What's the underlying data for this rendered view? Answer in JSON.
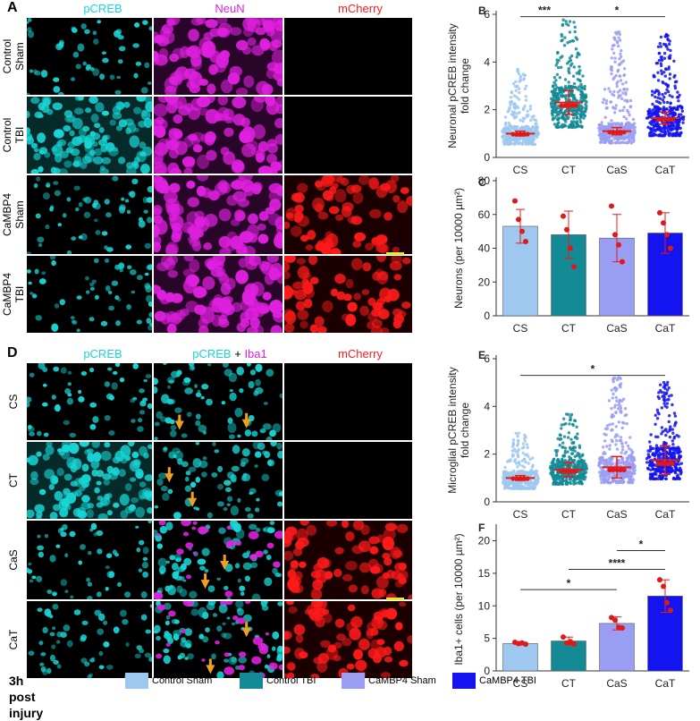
{
  "panelA": {
    "letter": "A",
    "col_headers": [
      "pCREB",
      "NeuN",
      "mCherry"
    ],
    "row_labels": [
      "Control\nSham",
      "Control\nTBI",
      "CaMBP4\nSham",
      "CaMBP4\nTBI"
    ]
  },
  "panelD": {
    "letter": "D",
    "col_head_1": "pCREB",
    "col_head_2a": "pCREB",
    "col_head_2b": " + ",
    "col_head_2c": "Iba1",
    "col_head_3": "mCherry",
    "row_labels": [
      "CS",
      "CT",
      "CaS",
      "CaT"
    ]
  },
  "colors": {
    "cyan": "#18d6d6",
    "magenta": "#e020e0",
    "red": "#ff1a1a",
    "control_sham": "#9ec8ef",
    "control_tbi": "#138a95",
    "cambp4_sham": "#9a9ef2",
    "cambp4_tbi": "#1414f0",
    "mean_bar": "#e81b1b",
    "arrow": "#f0a020"
  },
  "legend": {
    "title": "3h post injury",
    "items": [
      {
        "label": "Control Sham",
        "color": "#9ec8ef"
      },
      {
        "label": "Control TBI",
        "color": "#138a95"
      },
      {
        "label": "CaMBP4 Sham",
        "color": "#9a9ef2"
      },
      {
        "label": "CaMBP4 TBI",
        "color": "#1414f0"
      }
    ]
  },
  "chart_data": [
    {
      "letter": "B",
      "type": "scatter",
      "ylabel": "Neuronal pCREB intensity\nfold change",
      "categories": [
        "CS",
        "CT",
        "CaS",
        "CaT"
      ],
      "ylim": [
        0,
        6
      ],
      "yticks": [
        0,
        2,
        4,
        6
      ],
      "means": [
        1.0,
        2.3,
        1.1,
        1.65
      ],
      "sd": [
        0.1,
        0.5,
        0.15,
        0.25
      ],
      "spread_max": [
        3.7,
        5.9,
        5.3,
        5.3
      ],
      "significance": [
        {
          "from": 0,
          "to": 1,
          "label": "***",
          "y": 5.9
        },
        {
          "from": 1,
          "to": 3,
          "label": "*",
          "y": 5.9
        }
      ]
    },
    {
      "letter": "C",
      "type": "bar",
      "ylabel": "Neurons (per 10000 µm²)",
      "categories": [
        "CS",
        "CT",
        "CaS",
        "CaT"
      ],
      "ylim": [
        0,
        80
      ],
      "yticks": [
        0,
        20,
        40,
        60,
        80
      ],
      "values": [
        53,
        48,
        46,
        49
      ],
      "sd": [
        10,
        14,
        14,
        12
      ],
      "points": [
        [
          68,
          57,
          50,
          44
        ],
        [
          59,
          51,
          40,
          29
        ],
        [
          65,
          48,
          42,
          32
        ],
        [
          61,
          55,
          48,
          40
        ]
      ]
    },
    {
      "letter": "E",
      "type": "scatter",
      "ylabel": "Microglial pCREB intensity\nfold change",
      "categories": [
        "CS",
        "CT",
        "CaS",
        "CaT"
      ],
      "ylim": [
        0,
        6
      ],
      "yticks": [
        0,
        2,
        4,
        6
      ],
      "means": [
        1.0,
        1.35,
        1.45,
        1.75
      ],
      "sd": [
        0.1,
        0.3,
        0.45,
        0.6
      ],
      "spread_max": [
        2.9,
        3.7,
        5.3,
        5.1
      ],
      "significance": [
        {
          "from": 0,
          "to": 3,
          "label": "*",
          "y": 5.3
        }
      ]
    },
    {
      "letter": "F",
      "type": "bar",
      "ylabel": "Iba1+ cells (per 10000 µm²)",
      "categories": [
        "CS",
        "CT",
        "CaS",
        "CaT"
      ],
      "ylim": [
        0,
        22
      ],
      "yticks": [
        0,
        5,
        10,
        15,
        20
      ],
      "values": [
        4.2,
        4.6,
        7.3,
        11.5
      ],
      "sd": [
        0.2,
        0.6,
        1.0,
        2.5
      ],
      "points": [
        [
          4.4,
          4.2,
          4.3,
          4.1
        ],
        [
          5.2,
          4.3,
          4.5,
          4.1
        ],
        [
          8.2,
          7.8,
          6.7,
          6.6
        ],
        [
          14.0,
          13.0,
          10.5,
          9.3
        ]
      ],
      "significance": [
        {
          "from": 0,
          "to": 2,
          "label": "*",
          "y": 12.5
        },
        {
          "from": 1,
          "to": 3,
          "label": "****",
          "y": 15.6
        },
        {
          "from": 2,
          "to": 3,
          "label": "*",
          "y": 18.5
        }
      ]
    }
  ]
}
